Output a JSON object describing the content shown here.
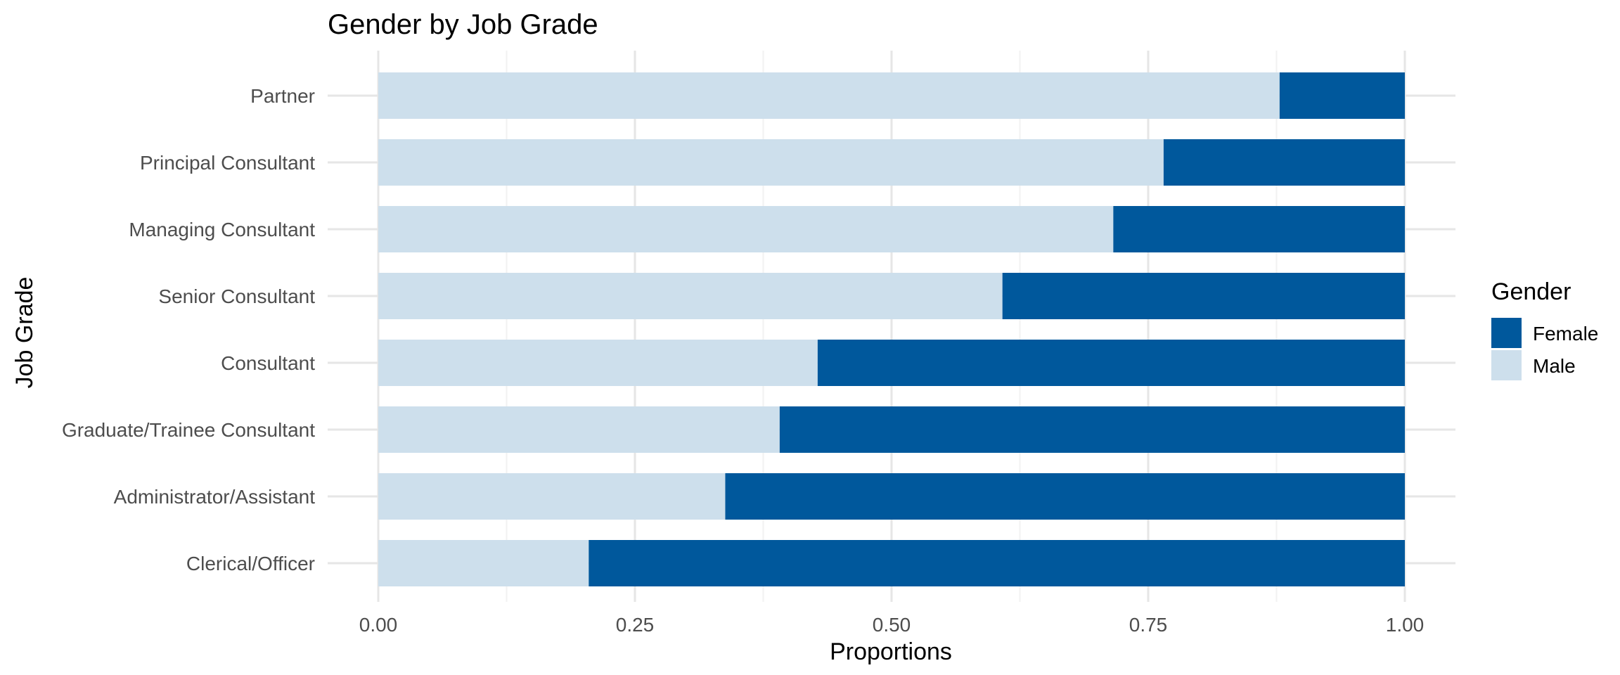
{
  "chart_data": {
    "type": "bar",
    "orientation": "horizontal",
    "stacked": true,
    "title": "Gender by Job Grade",
    "xlabel": "Proportions",
    "ylabel": "Job Grade",
    "xlim": [
      0,
      1
    ],
    "x_ticks": [
      "0.00",
      "0.25",
      "0.50",
      "0.75",
      "1.00"
    ],
    "grid": true,
    "legend": {
      "title": "Gender",
      "position": "right",
      "entries": [
        "Female",
        "Male"
      ]
    },
    "categories": [
      "Partner",
      "Principal Consultant",
      "Managing Consultant",
      "Senior Consultant",
      "Consultant",
      "Graduate/Trainee Consultant",
      "Administrator/Assistant",
      "Clerical/Officer"
    ],
    "series": [
      {
        "name": "Male",
        "color": "#cddfec",
        "values": [
          0.878,
          0.765,
          0.716,
          0.608,
          0.428,
          0.391,
          0.338,
          0.205
        ]
      },
      {
        "name": "Female",
        "color": "#00589c",
        "values": [
          0.122,
          0.235,
          0.284,
          0.392,
          0.572,
          0.609,
          0.662,
          0.795
        ]
      }
    ]
  }
}
